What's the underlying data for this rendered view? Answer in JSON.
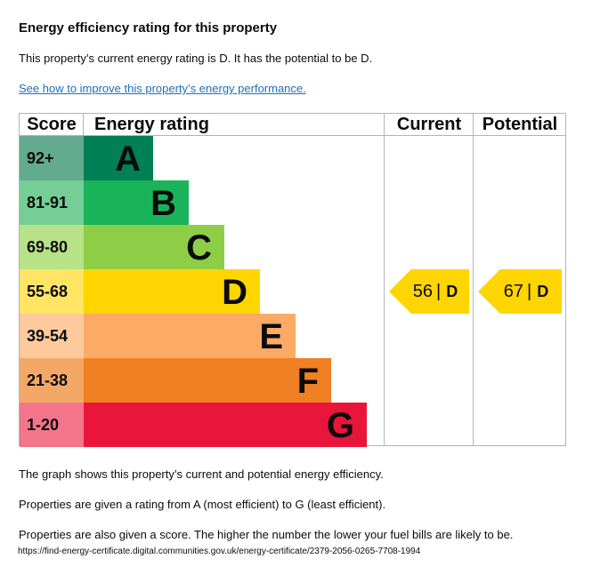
{
  "heading": "Energy efficiency rating for this property",
  "summary": "This property’s current energy rating is D. It has the potential to be D.",
  "link_text": "See how to improve this property’s energy performance.",
  "chart_data": {
    "type": "bar",
    "columns": {
      "score": "Score",
      "rating": "Energy rating",
      "current": "Current",
      "potential": "Potential"
    },
    "bands": [
      {
        "score": "92+",
        "letter": "A",
        "color": "#008054",
        "score_bg": "#63ab90",
        "text_color": "#0b0c0c"
      },
      {
        "score": "81-91",
        "letter": "B",
        "color": "#19b459",
        "score_bg": "#74ce95",
        "text_color": "#0b0c0c"
      },
      {
        "score": "69-80",
        "letter": "C",
        "color": "#8dce46",
        "score_bg": "#b8e287",
        "text_color": "#0b0c0c"
      },
      {
        "score": "55-68",
        "letter": "D",
        "color": "#ffd500",
        "score_bg": "#ffe563",
        "text_color": "#0b0c0c"
      },
      {
        "score": "39-54",
        "letter": "E",
        "color": "#fcaa65",
        "score_bg": "#fdc99d",
        "text_color": "#0b0c0c"
      },
      {
        "score": "21-38",
        "letter": "F",
        "color": "#ef8023",
        "score_bg": "#f4a868",
        "text_color": "#0b0c0c"
      },
      {
        "score": "1-20",
        "letter": "G",
        "color": "#e9153b",
        "score_bg": "#f27589",
        "text_color": "#0b0c0c"
      }
    ],
    "current": {
      "value": 56,
      "letter": "D"
    },
    "potential": {
      "value": 67,
      "letter": "D"
    }
  },
  "notes": [
    "The graph shows this property’s current and potential energy efficiency.",
    "Properties are given a rating from A (most efficient) to G (least efficient).",
    "Properties are also given a score. The higher the number the lower your fuel bills are likely to be."
  ],
  "footer_url": "https://find-energy-certificate.digital.communities.gov.uk/energy-certificate/2379-2056-0265-7708-1994"
}
